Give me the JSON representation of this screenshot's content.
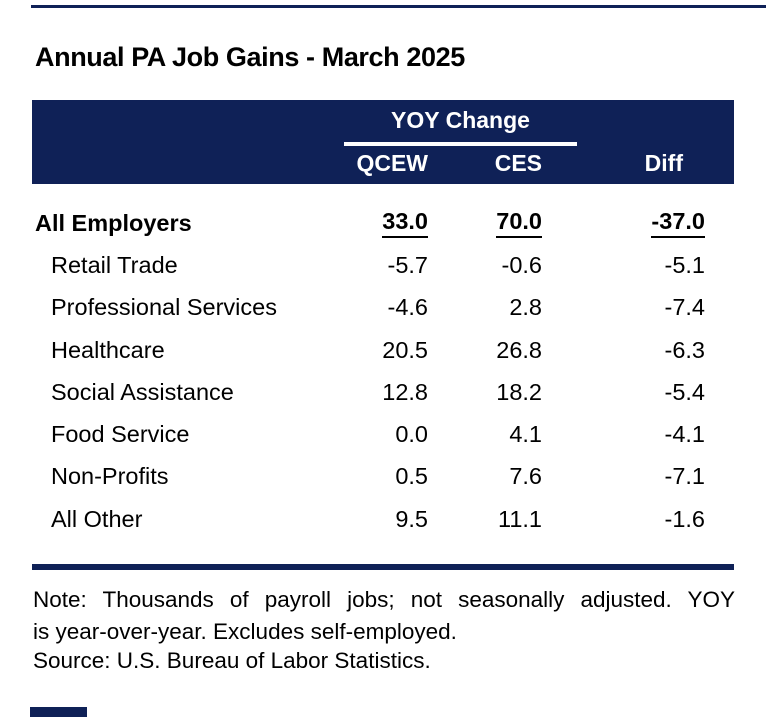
{
  "title": "Annual PA Job Gains - March 2025",
  "colors": {
    "navy": "#0f2157",
    "header_text": "#ffffff",
    "body_text": "#000000"
  },
  "chart_data": {
    "type": "table",
    "title": "Annual PA Job Gains - March 2025",
    "group_header": "YOY Change",
    "group_header_spans": [
      "QCEW",
      "CES"
    ],
    "columns": [
      "QCEW",
      "CES",
      "Diff"
    ],
    "rows": [
      {
        "label": "All Employers",
        "qcew": "33.0",
        "ces": "70.0",
        "diff": "-37.0",
        "emphasis": true
      },
      {
        "label": "Retail Trade",
        "qcew": "-5.7",
        "ces": "-0.6",
        "diff": "-5.1",
        "emphasis": false
      },
      {
        "label": "Professional Services",
        "qcew": "-4.6",
        "ces": "2.8",
        "diff": "-7.4",
        "emphasis": false
      },
      {
        "label": "Healthcare",
        "qcew": "20.5",
        "ces": "26.8",
        "diff": "-6.3",
        "emphasis": false
      },
      {
        "label": "Social Assistance",
        "qcew": "12.8",
        "ces": "18.2",
        "diff": "-5.4",
        "emphasis": false
      },
      {
        "label": "Food Service",
        "qcew": "0.0",
        "ces": "4.1",
        "diff": "-4.1",
        "emphasis": false
      },
      {
        "label": "Non-Profits",
        "qcew": "0.5",
        "ces": "7.6",
        "diff": "-7.1",
        "emphasis": false
      },
      {
        "label": "All Other",
        "qcew": "9.5",
        "ces": "11.1",
        "diff": "-1.6",
        "emphasis": false
      }
    ]
  },
  "footnotes": {
    "note_line1": "Note: Thousands of payroll jobs; not seasonally adjusted. YOY",
    "note_line2": "is year-over-year. Excludes self-employed.",
    "source": "Source: U.S. Bureau of Labor Statistics."
  }
}
